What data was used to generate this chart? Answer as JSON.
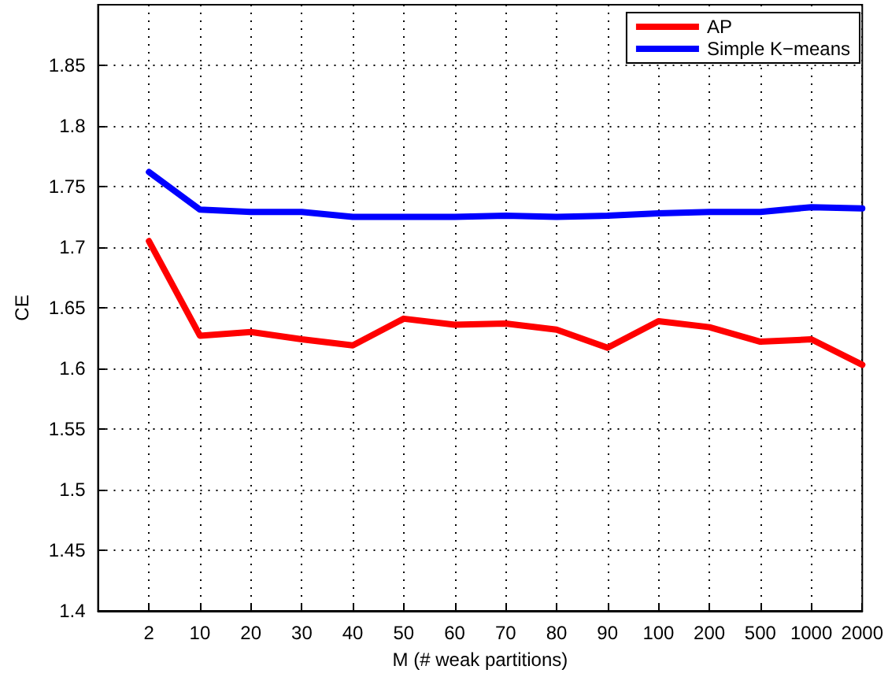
{
  "chart_data": {
    "type": "line",
    "xlabel": "M (# weak partitions)",
    "ylabel": "CE",
    "categories": [
      null,
      "2",
      "10",
      "20",
      "30",
      "40",
      "50",
      "60",
      "70",
      "80",
      "90",
      "100",
      "200",
      "500",
      "1000",
      "2000"
    ],
    "series": [
      {
        "name": "AP",
        "color": "#ff0000",
        "values": [
          null,
          1.705,
          1.627,
          1.63,
          1.624,
          1.619,
          1.641,
          1.636,
          1.637,
          1.632,
          1.617,
          1.639,
          1.634,
          1.622,
          1.624,
          1.603
        ]
      },
      {
        "name": "Simple K−means",
        "color": "#0000ff",
        "values": [
          null,
          1.762,
          1.731,
          1.729,
          1.729,
          1.725,
          1.725,
          1.725,
          1.726,
          1.725,
          1.726,
          1.728,
          1.729,
          1.729,
          1.733,
          1.732
        ]
      }
    ],
    "ylim": [
      1.4,
      1.9
    ],
    "yticks": [
      1.4,
      1.45,
      1.5,
      1.55,
      1.6,
      1.65,
      1.7,
      1.75,
      1.8,
      1.85
    ],
    "grid": true,
    "legend": "top right",
    "marker": "none",
    "line_style": "solid"
  }
}
